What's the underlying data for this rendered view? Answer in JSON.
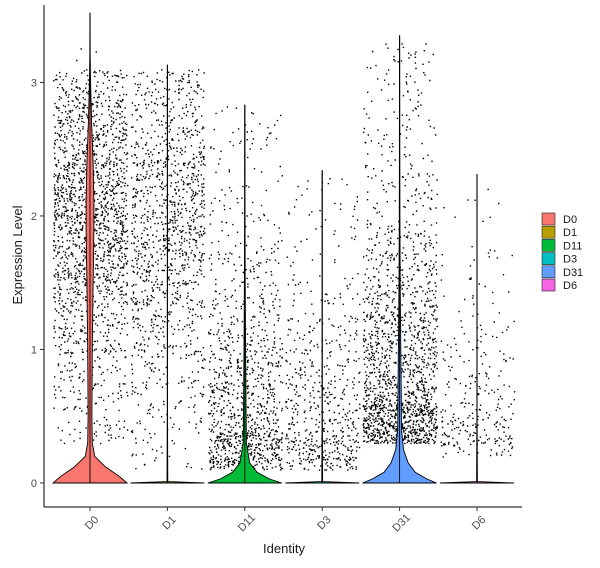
{
  "chart_data": {
    "type": "violin",
    "xlabel": "Identity",
    "ylabel": "Expression Level",
    "ylim": [
      -0.18,
      3.58
    ],
    "yticks": [
      0,
      1,
      2,
      3
    ],
    "tick_labels": [
      "0",
      "1",
      "2",
      "3"
    ],
    "categories": [
      "D0",
      "D1",
      "D11",
      "D3",
      "D31",
      "D6"
    ],
    "legend": {
      "position": "right",
      "entries": [
        "D0",
        "D1",
        "D11",
        "D3",
        "D31",
        "D6"
      ]
    },
    "colors": [
      "#F8766D",
      "#B79F00",
      "#00BA38",
      "#00BFC4",
      "#619CFF",
      "#F564E3"
    ],
    "series": [
      {
        "name": "D0",
        "max": 3.52,
        "points": 2600,
        "zero_fraction": 0.3,
        "nonzero_range": [
          0.3,
          3.1
        ],
        "density_mode": 2.0,
        "violin_profile": [
          [
            0,
            0.95
          ],
          [
            0.05,
            0.75
          ],
          [
            0.12,
            0.4
          ],
          [
            0.2,
            0.12
          ],
          [
            0.3,
            0.06
          ],
          [
            0.5,
            0.05
          ],
          [
            1.0,
            0.06
          ],
          [
            1.5,
            0.08
          ],
          [
            1.9,
            0.1
          ],
          [
            2.1,
            0.1
          ],
          [
            2.4,
            0.08
          ],
          [
            2.7,
            0.04
          ],
          [
            3.0,
            0.015
          ],
          [
            3.2,
            0.005
          ],
          [
            3.52,
            0.003
          ]
        ]
      },
      {
        "name": "D1",
        "max": 3.13,
        "points": 2700,
        "zero_fraction": 0.55,
        "nonzero_range": [
          0.1,
          3.1
        ],
        "density_mode": 1.9,
        "violin_profile": [
          [
            0,
            1.0
          ],
          [
            0.01,
            0.01
          ],
          [
            0.5,
            0.003
          ],
          [
            1.0,
            0.003
          ],
          [
            2.0,
            0.003
          ],
          [
            3.13,
            0.003
          ]
        ]
      },
      {
        "name": "D11",
        "max": 2.83,
        "points": 2400,
        "zero_fraction": 0.55,
        "nonzero_range": [
          0.1,
          2.8
        ],
        "density_mode": 0.5,
        "violin_profile": [
          [
            0,
            0.9
          ],
          [
            0.03,
            0.6
          ],
          [
            0.08,
            0.3
          ],
          [
            0.15,
            0.12
          ],
          [
            0.3,
            0.04
          ],
          [
            0.6,
            0.03
          ],
          [
            1.0,
            0.02
          ],
          [
            1.5,
            0.01
          ],
          [
            2.0,
            0.006
          ],
          [
            2.83,
            0.003
          ]
        ]
      },
      {
        "name": "D3",
        "max": 2.34,
        "points": 1300,
        "zero_fraction": 0.55,
        "nonzero_range": [
          0.1,
          2.3
        ],
        "density_mode": 0.5,
        "violin_profile": [
          [
            0,
            1.0
          ],
          [
            0.01,
            0.01
          ],
          [
            0.5,
            0.003
          ],
          [
            1.0,
            0.003
          ],
          [
            2.34,
            0.003
          ]
        ]
      },
      {
        "name": "D31",
        "max": 3.35,
        "points": 2800,
        "zero_fraction": 0.4,
        "nonzero_range": [
          0.3,
          3.3
        ],
        "density_mode": 0.7,
        "violin_profile": [
          [
            0,
            0.95
          ],
          [
            0.03,
            0.7
          ],
          [
            0.08,
            0.4
          ],
          [
            0.15,
            0.22
          ],
          [
            0.25,
            0.1
          ],
          [
            0.4,
            0.05
          ],
          [
            0.7,
            0.04
          ],
          [
            1.0,
            0.03
          ],
          [
            1.5,
            0.015
          ],
          [
            2.0,
            0.008
          ],
          [
            2.5,
            0.005
          ],
          [
            3.35,
            0.003
          ]
        ]
      },
      {
        "name": "D6",
        "max": 2.31,
        "points": 700,
        "zero_fraction": 0.6,
        "nonzero_range": [
          0.2,
          2.3
        ],
        "density_mode": 0.5,
        "violin_profile": [
          [
            0,
            1.0
          ],
          [
            0.01,
            0.01
          ],
          [
            0.5,
            0.003
          ],
          [
            1.0,
            0.003
          ],
          [
            2.31,
            0.003
          ]
        ]
      }
    ]
  }
}
